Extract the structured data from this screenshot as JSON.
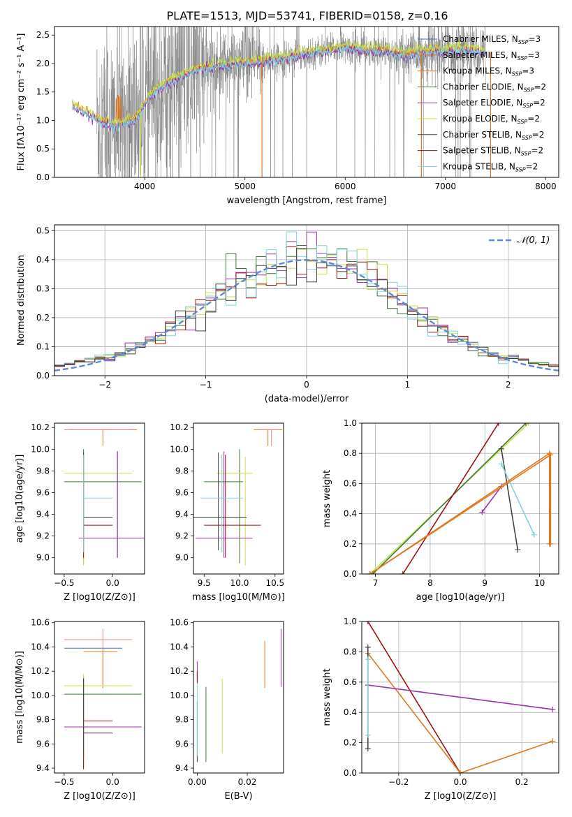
{
  "figure_title": "PLATE=1513, MJD=53741, FIBERID=0158, z=0.16",
  "colors": {
    "chabrier_miles": "#3b73c4",
    "salpeter_miles": "#e07820",
    "kroupa_miles": "#e07820",
    "chabrier_elodie": "#3a7a3a",
    "salpeter_elodie": "#9b30b0",
    "kroupa_elodie": "#c8e040",
    "chabrier_stelib": "#444444",
    "salpeter_stelib": "#a01010",
    "kroupa_stelib": "#7dd4dc",
    "observed": "#808080",
    "gaussian": "#5b8bd6",
    "pink": "#f08080"
  },
  "chart_data": [
    {
      "id": "spectrum",
      "type": "line",
      "title": "PLATE=1513, MJD=53741, FIBERID=0158, z=0.16",
      "xlabel": "wavelength [Angstrom, rest frame]",
      "ylabel": "Flux [fλ10⁻¹⁷ erg cm⁻² s⁻¹ A⁻¹]",
      "xlim": [
        3100,
        8130
      ],
      "ylim": [
        0,
        2.65
      ],
      "xticks": [
        4000,
        5000,
        6000,
        7000,
        8000
      ],
      "yticks": [
        0.0,
        0.5,
        1.0,
        1.5,
        2.0,
        2.5
      ],
      "grid": false,
      "legend_position": "right",
      "legend": [
        "Chabrier MILES, N_SSP=3",
        "Salpeter MILES, N_SSP=3",
        "Kroupa MILES, N_SSP=3",
        "Chabrier ELODIE, N_SSP=2",
        "Salpeter ELODIE, N_SSP=2",
        "Kroupa ELODIE, N_SSP=2",
        "Chabrier STELIB, N_SSP=2",
        "Salpeter STELIB, N_SSP=2",
        "Kroupa STELIB, N_SSP=2"
      ],
      "model_continuum": {
        "x": [
          3280,
          3400,
          3500,
          3600,
          3700,
          3800,
          3900,
          4000,
          4100,
          4200,
          4300,
          4400,
          4500,
          4600,
          4700,
          4800,
          4900,
          5000,
          5200,
          5400,
          5600,
          5800,
          6000,
          6200,
          6400,
          6600,
          6800,
          7000,
          7200,
          7400
        ],
        "y": [
          1.25,
          1.15,
          1.05,
          0.95,
          0.9,
          0.95,
          1.0,
          1.3,
          1.5,
          1.62,
          1.72,
          1.8,
          1.88,
          1.92,
          1.95,
          1.97,
          1.99,
          2.0,
          2.05,
          2.1,
          2.17,
          2.22,
          2.27,
          2.25,
          2.22,
          2.15,
          2.2,
          2.22,
          2.25,
          2.2
        ]
      },
      "observed_range": [
        3520,
        7400
      ],
      "observed_ylim_clip": [
        0,
        2.65
      ]
    },
    {
      "id": "residuals",
      "type": "histogram",
      "xlabel": "(data-model)/error",
      "ylabel": "Normed distribution",
      "xlim": [
        -2.5,
        2.5
      ],
      "ylim": [
        0,
        0.52
      ],
      "xticks": [
        -2,
        -1,
        0,
        1,
        2
      ],
      "yticks": [
        0.0,
        0.1,
        0.2,
        0.3,
        0.4,
        0.5
      ],
      "grid": true,
      "legend": [
        "𝒩(0, 1)"
      ],
      "legend_position": "top-right",
      "bin_width": 0.1
    },
    {
      "id": "age_vs_Z",
      "type": "scatter",
      "xlabel": "Z [log10(Z/Z⊙)]",
      "ylabel": "age  [log10(age/yr)]",
      "xlim": [
        -0.6,
        0.33
      ],
      "ylim": [
        8.85,
        10.24
      ],
      "xticks": [
        -0.5,
        0.0
      ],
      "yticks": [
        9.0,
        9.2,
        9.4,
        9.6,
        9.8,
        10.0,
        10.2
      ],
      "grid": false,
      "points": [
        {
          "c": "salpeter_miles",
          "x": -0.1,
          "y": 10.18,
          "xerr": [
            0.35,
            0.35
          ],
          "yerr": [
            0.15,
            0.0
          ]
        },
        {
          "c": "pink",
          "x": -0.1,
          "y": 10.18,
          "xerr": [
            0.4,
            0.3
          ],
          "yerr": [
            0.05,
            0.0
          ]
        },
        {
          "c": "chabrier_elodie",
          "x": -0.3,
          "y": 9.7,
          "xerr": [
            0.2,
            0.6
          ],
          "yerr": [
            0.75,
            0.3
          ]
        },
        {
          "c": "kroupa_elodie",
          "x": -0.3,
          "y": 9.78,
          "xerr": [
            0.2,
            0.5
          ],
          "yerr": [
            0.85,
            0.1
          ]
        },
        {
          "c": "salpeter_elodie",
          "x": 0.05,
          "y": 9.18,
          "xerr": [
            0.4,
            0.3
          ],
          "yerr": [
            0.18,
            0.8
          ]
        },
        {
          "c": "chabrier_stelib",
          "x": -0.3,
          "y": 9.37,
          "xerr": [
            0.0,
            0.3
          ],
          "yerr": [
            0.3,
            0.6
          ]
        },
        {
          "c": "salpeter_stelib",
          "x": -0.3,
          "y": 9.3,
          "xerr": [
            0.0,
            0.3
          ],
          "yerr": [
            0.3,
            0.65
          ]
        },
        {
          "c": "kroupa_stelib",
          "x": -0.3,
          "y": 9.55,
          "xerr": [
            0.0,
            0.3
          ],
          "yerr": [
            0.5,
            0.4
          ]
        },
        {
          "c": "salpeter_elodie",
          "x": 0.05,
          "y": 9.6,
          "xerr": [
            0.0,
            0.0
          ],
          "yerr": [
            0.6,
            0.38
          ]
        }
      ]
    },
    {
      "id": "age_vs_mass",
      "type": "scatter",
      "xlabel": "mass [log10(M/M⊙)]",
      "ylabel": "",
      "xlim": [
        9.35,
        10.62
      ],
      "ylim": [
        8.85,
        10.24
      ],
      "xticks": [
        9.5,
        10.0,
        10.5
      ],
      "yticks": [
        9.0,
        9.2,
        9.4,
        9.6,
        9.8,
        10.0,
        10.2
      ],
      "grid": false,
      "points": [
        {
          "c": "salpeter_miles",
          "x": 10.4,
          "y": 10.18,
          "xerr": [
            0.2,
            0.2
          ],
          "yerr": [
            0.15,
            0.0
          ]
        },
        {
          "c": "pink",
          "x": 10.45,
          "y": 10.18,
          "xerr": [
            0.1,
            0.1
          ],
          "yerr": [
            0.15,
            0.0
          ]
        },
        {
          "c": "chabrier_elodie",
          "x": 10.0,
          "y": 9.7,
          "xerr": [
            0.5,
            0.05
          ],
          "yerr": [
            0.75,
            0.3
          ]
        },
        {
          "c": "kroupa_elodie",
          "x": 10.08,
          "y": 9.78,
          "xerr": [
            0.4,
            0.1
          ],
          "yerr": [
            0.85,
            0.15
          ]
        },
        {
          "c": "salpeter_elodie",
          "x": 9.78,
          "y": 9.18,
          "xerr": [
            0.4,
            0.4
          ],
          "yerr": [
            0.18,
            0.8
          ]
        },
        {
          "c": "chabrier_stelib",
          "x": 9.7,
          "y": 9.37,
          "xerr": [
            0.4,
            0.4
          ],
          "yerr": [
            0.3,
            0.6
          ]
        },
        {
          "c": "salpeter_stelib",
          "x": 9.8,
          "y": 9.3,
          "xerr": [
            0.3,
            0.5
          ],
          "yerr": [
            0.3,
            0.65
          ]
        },
        {
          "c": "kroupa_stelib",
          "x": 9.75,
          "y": 9.55,
          "xerr": [
            0.3,
            0.3
          ],
          "yerr": [
            0.5,
            0.4
          ]
        }
      ]
    },
    {
      "id": "mass_weight_vs_age",
      "type": "line",
      "xlabel": "age  [log10(age/yr)]",
      "ylabel": "mass weight",
      "xlim": [
        6.75,
        10.35
      ],
      "ylim": [
        0,
        1.0
      ],
      "xticks": [
        7,
        8,
        9,
        10
      ],
      "yticks": [
        0.0,
        0.2,
        0.4,
        0.6,
        0.8,
        1.0
      ],
      "grid": true,
      "series": [
        {
          "c": "kroupa_elodie",
          "x": [
            6.9,
            9.8
          ],
          "y": [
            0.0,
            1.0
          ]
        },
        {
          "c": "chabrier_elodie",
          "x": [
            6.95,
            9.75
          ],
          "y": [
            0.0,
            1.0
          ]
        },
        {
          "c": "salpeter_stelib",
          "x": [
            7.5,
            9.25
          ],
          "y": [
            0.0,
            1.0
          ]
        },
        {
          "c": "chabrier_stelib",
          "x": [
            9.3,
            9.6
          ],
          "y": [
            0.83,
            0.16
          ]
        },
        {
          "c": "kroupa_stelib",
          "x": [
            9.3,
            9.9
          ],
          "y": [
            0.73,
            0.26
          ]
        },
        {
          "c": "salpeter_elodie",
          "x": [
            8.95,
            9.3
          ],
          "y": [
            0.41,
            0.58
          ]
        },
        {
          "c": "salpeter_miles",
          "x": [
            6.9,
            10.18,
            10.18
          ],
          "y": [
            0.0,
            0.8,
            0.2
          ]
        },
        {
          "c": "kroupa_miles",
          "x": [
            6.9,
            10.2,
            10.2
          ],
          "y": [
            0.0,
            0.79,
            0.2
          ]
        }
      ]
    },
    {
      "id": "mass_vs_Z",
      "type": "scatter",
      "xlabel": "Z [log10(Z/Z⊙)]",
      "ylabel": "mass [log10(M/M⊙)]",
      "xlim": [
        -0.6,
        0.33
      ],
      "ylim": [
        9.36,
        10.61
      ],
      "xticks": [
        -0.5,
        0.0
      ],
      "yticks": [
        9.4,
        9.6,
        9.8,
        10.0,
        10.2,
        10.4,
        10.6
      ],
      "grid": false,
      "points": [
        {
          "c": "pink",
          "x": -0.1,
          "y": 10.46,
          "xerr": [
            0.4,
            0.3
          ],
          "yerr": [
            0.4,
            0.09
          ]
        },
        {
          "c": "chabrier_miles",
          "x": -0.1,
          "y": 10.39,
          "xerr": [
            0.4,
            0.2
          ],
          "yerr": [
            0.0,
            0.0
          ]
        },
        {
          "c": "salpeter_miles",
          "x": -0.1,
          "y": 10.36,
          "xerr": [
            0.2,
            0.15
          ],
          "yerr": [
            0.3,
            0.0
          ]
        },
        {
          "c": "chabrier_elodie",
          "x": -0.3,
          "y": 10.01,
          "xerr": [
            0.2,
            0.6
          ],
          "yerr": [
            0.6,
            0.15
          ]
        },
        {
          "c": "kroupa_elodie",
          "x": -0.3,
          "y": 10.08,
          "xerr": [
            0.2,
            0.5
          ],
          "yerr": [
            0.6,
            0.1
          ]
        },
        {
          "c": "salpeter_stelib",
          "x": -0.3,
          "y": 9.79,
          "xerr": [
            0.0,
            0.3
          ],
          "yerr": [
            0.4,
            0.35
          ]
        },
        {
          "c": "chabrier_stelib",
          "x": -0.3,
          "y": 9.69,
          "xerr": [
            0.0,
            0.3
          ],
          "yerr": [
            0.2,
            0.45
          ]
        },
        {
          "c": "salpeter_elodie",
          "x": -0.3,
          "y": 9.74,
          "xerr": [
            0.2,
            0.6
          ],
          "yerr": [
            0.0,
            0.0
          ]
        }
      ]
    },
    {
      "id": "mass_vs_ebv",
      "type": "scatter",
      "xlabel": "E(B-V)",
      "ylabel": "",
      "xlim": [
        -0.0015,
        0.0345
      ],
      "ylim": [
        9.36,
        10.61
      ],
      "xticks": [
        0.0,
        0.02
      ],
      "yticks": [
        9.4,
        9.6,
        9.8,
        10.0,
        10.2,
        10.4,
        10.6
      ],
      "grid": false,
      "points": [
        {
          "c": "salpeter_elodie",
          "x": 0.0,
          "y": 10.2,
          "xerr": [
            0.0,
            0.0
          ],
          "yerr": [
            0.08,
            0.08
          ]
        },
        {
          "c": "salpeter_stelib",
          "x": 0.0,
          "y": 10.15,
          "xerr": [
            0.0,
            0.0
          ],
          "yerr": [
            0.05,
            0.05
          ]
        },
        {
          "c": "chabrier_stelib",
          "x": 0.0,
          "y": 9.7,
          "xerr": [
            0.0,
            0.0
          ],
          "yerr": [
            0.25,
            0.25
          ]
        },
        {
          "c": "kroupa_stelib",
          "x": 0.0,
          "y": 9.8,
          "xerr": [
            0.0,
            0.0
          ],
          "yerr": [
            0.3,
            0.3
          ]
        },
        {
          "c": "chabrier_elodie",
          "x": 0.0035,
          "y": 9.75,
          "xerr": [
            0.0,
            0.0
          ],
          "yerr": [
            0.3,
            0.32
          ]
        },
        {
          "c": "kroupa_elodie",
          "x": 0.01,
          "y": 9.83,
          "xerr": [
            0.0,
            0.0
          ],
          "yerr": [
            0.31,
            0.31
          ]
        },
        {
          "c": "salpeter_miles",
          "x": 0.027,
          "y": 10.25,
          "xerr": [
            0.0,
            0.0
          ],
          "yerr": [
            0.19,
            0.2
          ]
        },
        {
          "c": "salpeter_elodie",
          "x": 0.0335,
          "y": 10.3,
          "xerr": [
            0.0,
            0.0
          ],
          "yerr": [
            0.23,
            0.25
          ]
        }
      ]
    },
    {
      "id": "mass_weight_vs_Z",
      "type": "line",
      "xlabel": "Z [log10(Z/Z⊙)]",
      "ylabel": "mass weight",
      "xlim": [
        -0.32,
        0.32
      ],
      "ylim": [
        0,
        1.0
      ],
      "xticks": [
        -0.2,
        0.0,
        0.2
      ],
      "yticks": [
        0.0,
        0.2,
        0.4,
        0.6,
        0.8,
        1.0
      ],
      "grid": true,
      "series": [
        {
          "c": "salpeter_stelib",
          "x": [
            -0.3,
            0.0
          ],
          "y": [
            1.0,
            0.0
          ]
        },
        {
          "c": "salpeter_miles",
          "x": [
            -0.3,
            0.0,
            0.3
          ],
          "y": [
            0.79,
            0.0,
            0.21
          ]
        },
        {
          "c": "salpeter_elodie",
          "x": [
            -0.3,
            0.3
          ],
          "y": [
            0.58,
            0.42
          ]
        },
        {
          "c": "chabrier_stelib",
          "x": [
            -0.3,
            -0.3
          ],
          "y": [
            0.83,
            0.16
          ]
        },
        {
          "c": "kroupa_stelib",
          "x": [
            -0.3,
            -0.3
          ],
          "y": [
            0.75,
            0.25
          ]
        }
      ]
    }
  ]
}
